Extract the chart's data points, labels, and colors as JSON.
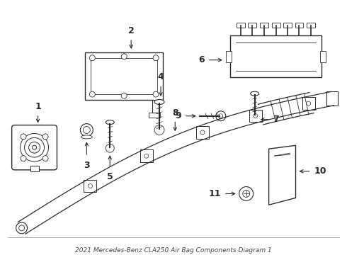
{
  "title": "2021 Mercedes-Benz CLA250 Air Bag Components Diagram 1",
  "bg_color": "#ffffff",
  "line_color": "#2a2a2a",
  "label_color": "#000000",
  "font_size": 9,
  "title_font_size": 6.5,
  "figw": 4.9,
  "figh": 3.6,
  "dpi": 100
}
